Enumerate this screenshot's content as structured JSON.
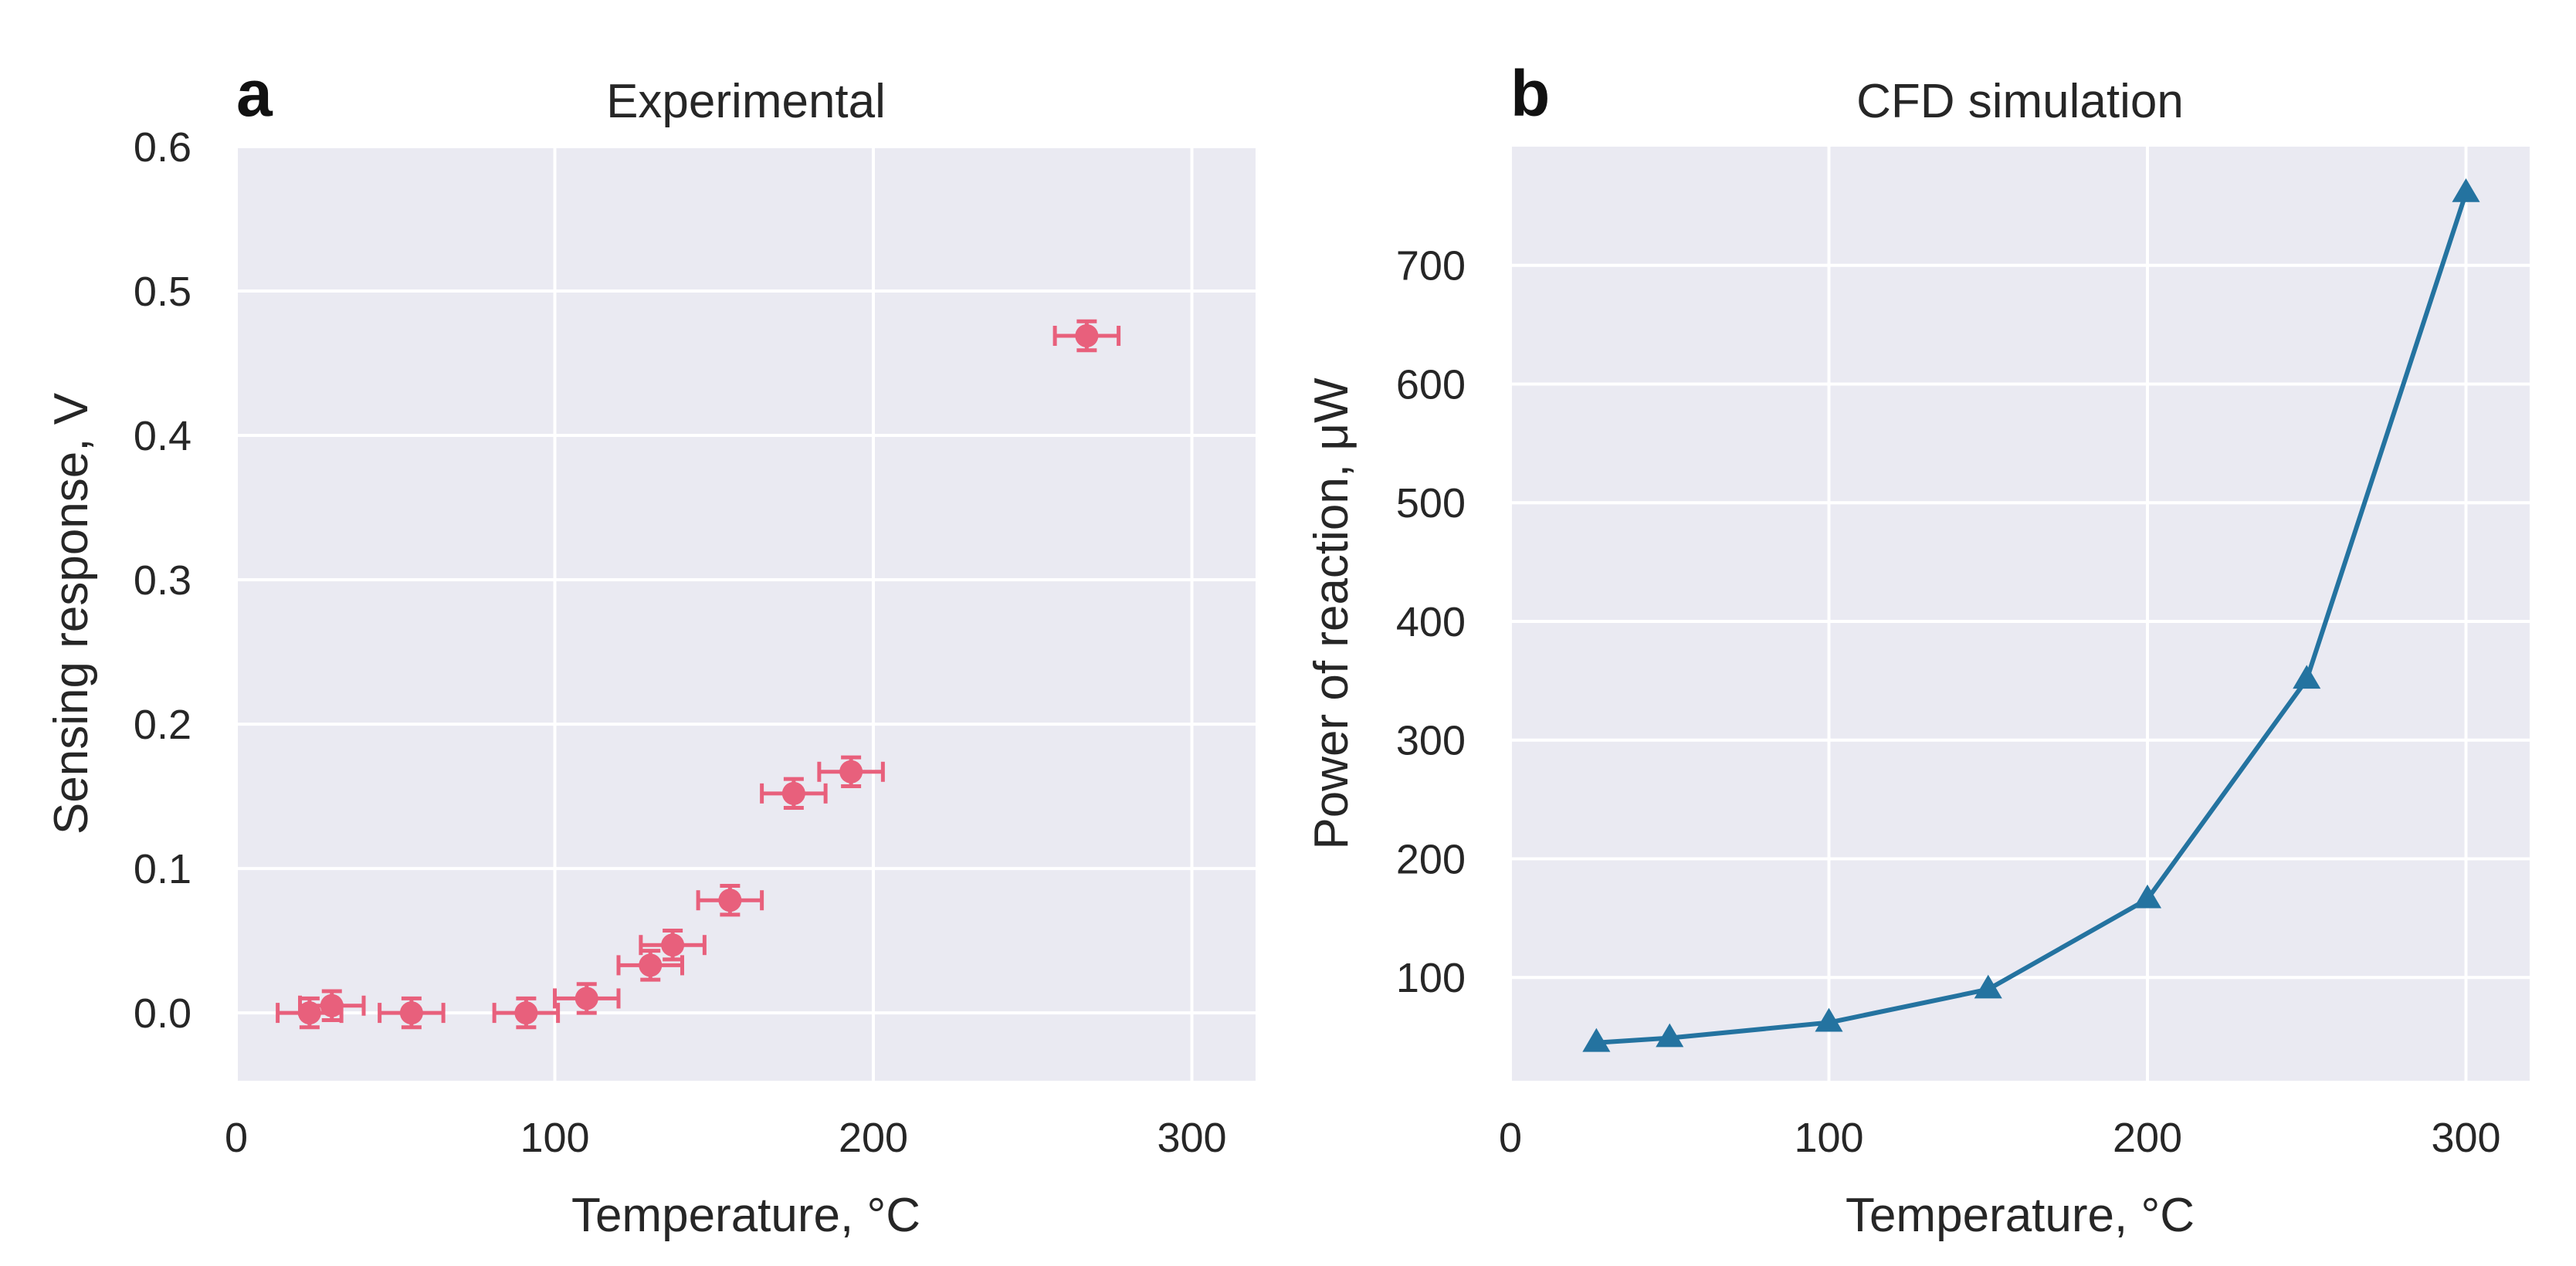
{
  "colors": {
    "panel_bg": "#eaeaf2",
    "grid": "#ffffff",
    "series_a": "#e8607c",
    "series_b": "#2473a0",
    "text": "#262626"
  },
  "chart_data": [
    {
      "panel_letter": "a",
      "title": "Experimental",
      "type": "scatter",
      "xlabel": "Temperature, °C",
      "ylabel": "Sensing response, V",
      "xlim": [
        0,
        320
      ],
      "ylim": [
        -0.047,
        0.6
      ],
      "xticks": [
        0,
        100,
        200,
        300
      ],
      "xtick_labels": [
        "0",
        "100",
        "200",
        "300"
      ],
      "yticks": [
        0.0,
        0.1,
        0.2,
        0.3,
        0.4,
        0.5,
        0.6
      ],
      "ytick_labels": [
        "0.0",
        "0.1",
        "0.2",
        "0.3",
        "0.4",
        "0.5",
        "0.6"
      ],
      "grid": true,
      "marker": "circle",
      "series": [
        {
          "name": "Sensing response",
          "x": [
            23,
            30,
            55,
            91,
            110,
            130,
            137,
            155,
            175,
            193,
            267
          ],
          "y": [
            0.0,
            0.005,
            0.0,
            0.0,
            0.01,
            0.033,
            0.047,
            0.078,
            0.152,
            0.167,
            0.469
          ],
          "xerr": [
            10,
            10,
            10,
            10,
            10,
            10,
            10,
            10,
            10,
            10,
            10
          ],
          "yerr": [
            0.01,
            0.01,
            0.01,
            0.01,
            0.01,
            0.01,
            0.01,
            0.01,
            0.01,
            0.01,
            0.01
          ]
        }
      ]
    },
    {
      "panel_letter": "b",
      "title": "CFD simulation",
      "type": "line",
      "xlabel": "Temperature, °C",
      "ylabel": "Power of reaction, μW",
      "xlim": [
        0,
        320
      ],
      "ylim": [
        13,
        800
      ],
      "xticks": [
        0,
        100,
        200,
        300
      ],
      "xtick_labels": [
        "0",
        "100",
        "200",
        "300"
      ],
      "yticks": [
        100,
        200,
        300,
        400,
        500,
        600,
        700
      ],
      "ytick_labels": [
        "100",
        "200",
        "300",
        "400",
        "500",
        "600",
        "700"
      ],
      "grid": true,
      "marker": "triangle",
      "series": [
        {
          "name": "Power of reaction",
          "x": [
            27,
            50,
            100,
            150,
            200,
            250,
            300
          ],
          "y": [
            45,
            49,
            62,
            90,
            166,
            351,
            761
          ]
        }
      ]
    }
  ]
}
